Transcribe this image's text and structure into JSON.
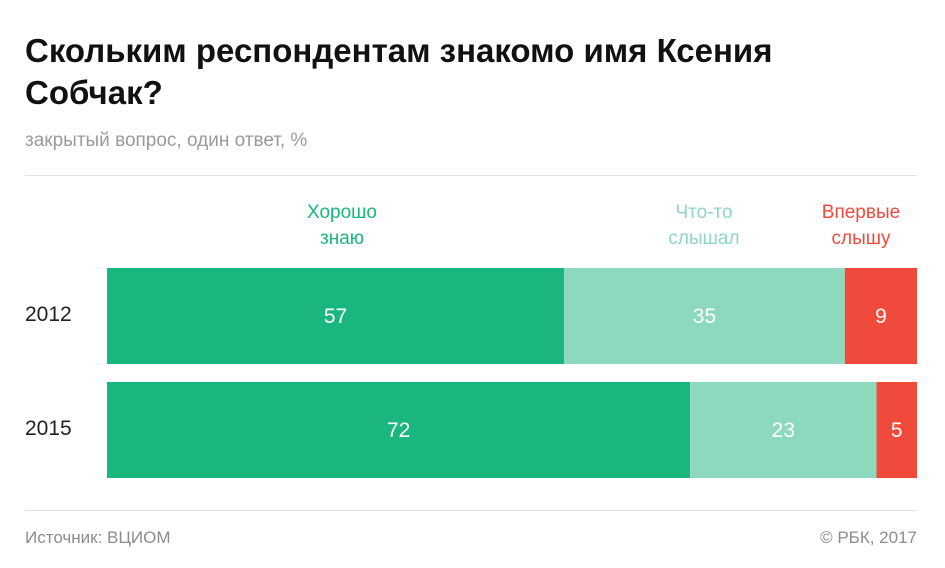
{
  "title": "Скольким респондентам знакомо имя Ксения Собчак?",
  "subtitle": "закрытый вопрос, один ответ, %",
  "colors": {
    "know_well": "#19b77e",
    "heard_something": "#8dd9bd",
    "first_time": "#f04a3d"
  },
  "legend": {
    "know_well": [
      "Хорошо",
      "знаю"
    ],
    "heard_something": [
      "Что-то",
      "слышал"
    ],
    "first_time": [
      "Впервые",
      "слышу"
    ]
  },
  "chart_data": {
    "type": "bar",
    "stacked": true,
    "orientation": "horizontal",
    "categories": [
      "2012",
      "2015"
    ],
    "series": [
      {
        "name": "Хорошо знаю",
        "values": [
          57,
          72
        ]
      },
      {
        "name": "Что-то слышал",
        "values": [
          35,
          23
        ]
      },
      {
        "name": "Впервые слышу",
        "values": [
          9,
          5
        ]
      }
    ],
    "legend_position": "top",
    "grid": false
  },
  "footer": {
    "source": "Источник: ВЦИОМ",
    "copyright": "© РБК, 2017"
  }
}
